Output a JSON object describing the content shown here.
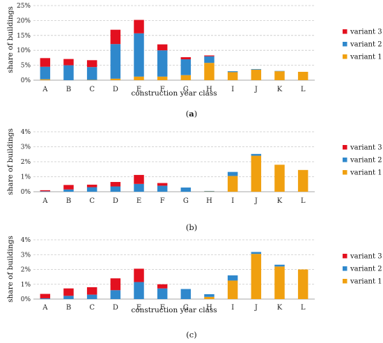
{
  "legend_entries": [
    "variant 3",
    "variant 2",
    "variant 1"
  ],
  "colors": {
    "variant 1": "#f0a010",
    "variant 2": "#2f88cc",
    "variant 3": "#e3101f",
    "grid": "#c8c8c8",
    "axis": "#8a8a8a"
  },
  "chart_data": [
    {
      "type": "bar",
      "stacked": true,
      "panel_label": "a",
      "categories": [
        "A",
        "B",
        "C",
        "D",
        "E",
        "F",
        "G",
        "H",
        "I",
        "J",
        "K",
        "L"
      ],
      "xlabel": "construction year class",
      "ylabel": "share of buildings",
      "ylim": [
        0,
        25
      ],
      "yticks": [
        "0%",
        "5%",
        "10%",
        "15%",
        "20%",
        "25%"
      ],
      "grid": true,
      "legend_position": "right",
      "series": [
        {
          "name": "variant 1",
          "values": [
            0.3,
            0,
            0.1,
            0.5,
            1.2,
            1.2,
            1.7,
            5.8,
            2.7,
            3.5,
            3.0,
            2.8
          ]
        },
        {
          "name": "variant 2",
          "values": [
            4.2,
            5.0,
            4.3,
            11.6,
            14.5,
            8.8,
            5.3,
            2.2,
            0.3,
            0.2,
            0.1,
            0
          ]
        },
        {
          "name": "variant 3",
          "values": [
            2.9,
            2.1,
            2.3,
            4.8,
            4.5,
            2.0,
            0.7,
            0.3,
            0,
            0,
            0,
            0
          ]
        }
      ]
    },
    {
      "type": "bar",
      "stacked": true,
      "panel_label": "b",
      "categories": [
        "A",
        "B",
        "C",
        "D",
        "E",
        "F",
        "G",
        "H",
        "I",
        "J",
        "K",
        "L"
      ],
      "xlabel": "",
      "ylabel": "share of buildings",
      "ylim": [
        0,
        4
      ],
      "yticks": [
        "0%",
        "1%",
        "2%",
        "3%",
        "4%"
      ],
      "grid": true,
      "legend_position": "right",
      "series": [
        {
          "name": "variant 1",
          "values": [
            0,
            0,
            0,
            0,
            0,
            0,
            0,
            0.02,
            1.05,
            2.4,
            1.8,
            1.45
          ]
        },
        {
          "name": "variant 2",
          "values": [
            0.03,
            0.15,
            0.3,
            0.35,
            0.52,
            0.4,
            0.28,
            0.03,
            0.27,
            0.12,
            0,
            0
          ]
        },
        {
          "name": "variant 3",
          "values": [
            0.07,
            0.3,
            0.17,
            0.3,
            0.6,
            0.18,
            0,
            0,
            0,
            0,
            0,
            0
          ]
        }
      ]
    },
    {
      "type": "bar",
      "stacked": true,
      "panel_label": "c",
      "categories": [
        "A",
        "B",
        "C",
        "D",
        "E",
        "F",
        "G",
        "H",
        "I",
        "J",
        "K",
        "L"
      ],
      "xlabel": "construction year class",
      "ylabel": "share of buildings",
      "ylim": [
        0,
        4
      ],
      "yticks": [
        "0%",
        "1%",
        "2%",
        "3%",
        "4%"
      ],
      "grid": true,
      "legend_position": "right",
      "series": [
        {
          "name": "variant 1",
          "values": [
            0,
            0,
            0,
            0,
            0,
            0,
            0,
            0.15,
            1.25,
            3.05,
            2.2,
            2.0
          ]
        },
        {
          "name": "variant 2",
          "values": [
            0.05,
            0.22,
            0.3,
            0.6,
            1.15,
            0.72,
            0.68,
            0.18,
            0.35,
            0.13,
            0.12,
            0
          ]
        },
        {
          "name": "variant 3",
          "values": [
            0.3,
            0.5,
            0.5,
            0.8,
            0.9,
            0.28,
            0,
            0,
            0,
            0,
            0,
            0
          ]
        }
      ]
    }
  ]
}
